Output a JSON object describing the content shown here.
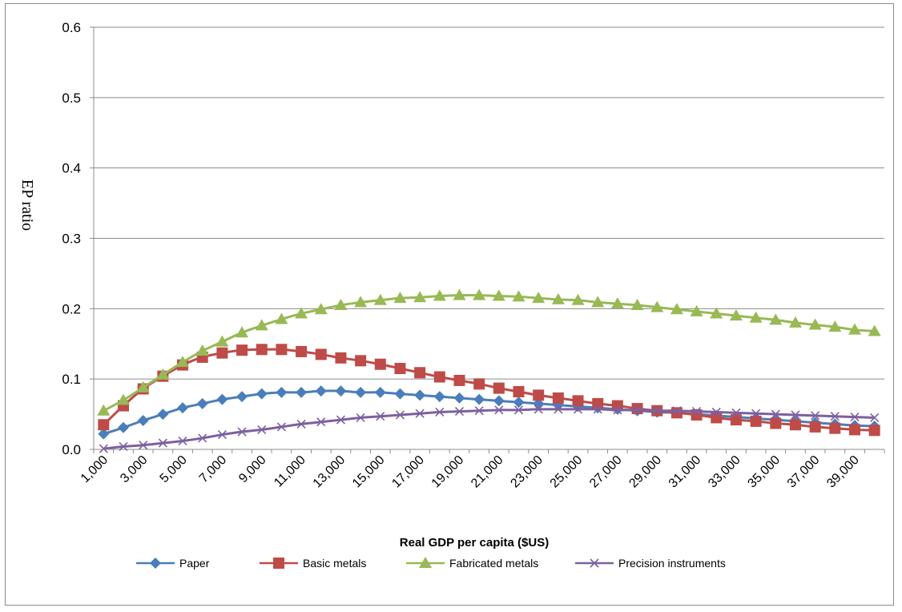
{
  "chart_data": {
    "type": "line",
    "title": "",
    "xlabel": "Real GDP per capita ($US)",
    "ylabel": "EP ratio",
    "ylim": [
      0,
      0.6
    ],
    "y_ticks": [
      "0.0",
      "0.1",
      "0.2",
      "0.3",
      "0.4",
      "0.5",
      "0.6"
    ],
    "x_tick_labels": [
      "1,000",
      "3,000",
      "5,000",
      "7,000",
      "9,000",
      "11,000",
      "13,000",
      "15,000",
      "17,000",
      "19,000",
      "21,000",
      "23,000",
      "25,000",
      "27,000",
      "29,000",
      "31,000",
      "33,000",
      "35,000",
      "37,000",
      "39,000"
    ],
    "x": [
      1000,
      2000,
      3000,
      4000,
      5000,
      6000,
      7000,
      8000,
      9000,
      10000,
      11000,
      12000,
      13000,
      14000,
      15000,
      16000,
      17000,
      18000,
      19000,
      20000,
      21000,
      22000,
      23000,
      24000,
      25000,
      26000,
      27000,
      28000,
      29000,
      30000,
      31000,
      32000,
      33000,
      34000,
      35000,
      36000,
      37000,
      38000,
      39000,
      40000
    ],
    "grid": true,
    "legend_position": "bottom",
    "series": [
      {
        "name": "Paper",
        "color": "#4a7ebb",
        "marker": "diamond",
        "values": [
          0.022,
          0.031,
          0.041,
          0.05,
          0.059,
          0.065,
          0.071,
          0.075,
          0.079,
          0.081,
          0.081,
          0.083,
          0.083,
          0.081,
          0.081,
          0.079,
          0.077,
          0.075,
          0.073,
          0.071,
          0.069,
          0.067,
          0.065,
          0.063,
          0.061,
          0.059,
          0.057,
          0.055,
          0.053,
          0.052,
          0.05,
          0.048,
          0.046,
          0.044,
          0.042,
          0.04,
          0.038,
          0.036,
          0.034,
          0.033
        ]
      },
      {
        "name": "Basic metals",
        "color": "#be4b48",
        "marker": "square",
        "values": [
          0.035,
          0.062,
          0.086,
          0.104,
          0.12,
          0.131,
          0.137,
          0.141,
          0.142,
          0.142,
          0.139,
          0.135,
          0.13,
          0.126,
          0.121,
          0.115,
          0.109,
          0.103,
          0.098,
          0.093,
          0.087,
          0.082,
          0.077,
          0.073,
          0.069,
          0.065,
          0.062,
          0.058,
          0.055,
          0.052,
          0.049,
          0.045,
          0.042,
          0.04,
          0.037,
          0.035,
          0.032,
          0.03,
          0.028,
          0.027
        ]
      },
      {
        "name": "Fabricated metals",
        "color": "#98b954",
        "marker": "triangle",
        "values": [
          0.055,
          0.07,
          0.088,
          0.106,
          0.124,
          0.14,
          0.153,
          0.166,
          0.176,
          0.185,
          0.193,
          0.199,
          0.205,
          0.209,
          0.212,
          0.215,
          0.216,
          0.218,
          0.219,
          0.219,
          0.218,
          0.217,
          0.215,
          0.213,
          0.212,
          0.209,
          0.207,
          0.205,
          0.202,
          0.199,
          0.196,
          0.193,
          0.19,
          0.187,
          0.184,
          0.18,
          0.177,
          0.174,
          0.17,
          0.168
        ]
      },
      {
        "name": "Precision instruments",
        "color": "#7d60a0",
        "marker": "x",
        "values": [
          0.001,
          0.004,
          0.006,
          0.009,
          0.012,
          0.016,
          0.021,
          0.025,
          0.028,
          0.032,
          0.036,
          0.039,
          0.042,
          0.045,
          0.047,
          0.049,
          0.051,
          0.053,
          0.054,
          0.055,
          0.056,
          0.056,
          0.057,
          0.057,
          0.057,
          0.057,
          0.056,
          0.056,
          0.055,
          0.055,
          0.054,
          0.053,
          0.052,
          0.051,
          0.05,
          0.049,
          0.048,
          0.047,
          0.046,
          0.045
        ]
      }
    ]
  }
}
